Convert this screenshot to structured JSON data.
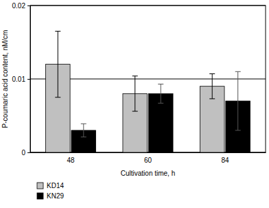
{
  "chart_data": {
    "type": "bar",
    "x_label": "Cultivation time, h",
    "y_label": "P-coumaric acid content, nM/cm",
    "categories": [
      "48",
      "60",
      "84"
    ],
    "series": [
      {
        "name": "KD14",
        "color": "#c0c0c0",
        "values": [
          0.012,
          0.008,
          0.009
        ],
        "errors": [
          0.0045,
          0.0024,
          0.0017
        ]
      },
      {
        "name": "KN29",
        "color": "#000000",
        "values": [
          0.003,
          0.008,
          0.007
        ],
        "errors": [
          0.0009,
          0.0013,
          0.004
        ]
      }
    ],
    "ylim": [
      0,
      0.02
    ],
    "yticks": [
      0,
      0.01,
      0.02
    ],
    "grid": true,
    "legend": "bottom"
  }
}
